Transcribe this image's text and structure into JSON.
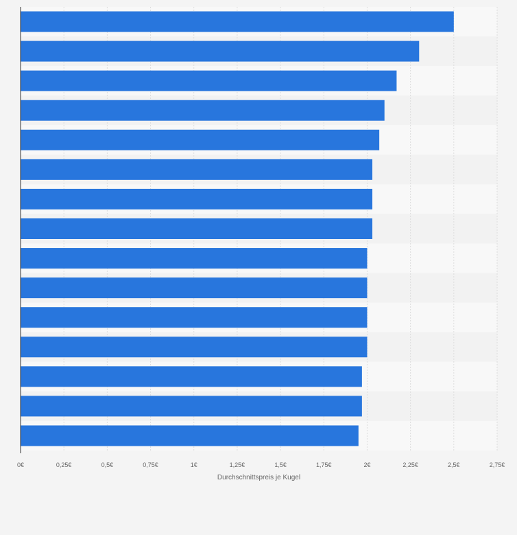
{
  "chart_data": {
    "type": "bar",
    "orientation": "horizontal",
    "title": "",
    "xlabel": "Durchschnittspreis je Kugel",
    "ylabel": "",
    "categories": [
      "",
      "",
      "",
      "",
      "",
      "",
      "",
      "",
      "",
      "",
      "",
      "",
      "",
      "",
      ""
    ],
    "values": [
      2.5,
      2.3,
      2.17,
      2.1,
      2.07,
      2.03,
      2.03,
      2.03,
      2.0,
      2.0,
      2.0,
      2.0,
      1.97,
      1.97,
      1.95
    ],
    "xlim": [
      0,
      2.75
    ],
    "x_ticks": [
      0,
      0.25,
      0.5,
      0.75,
      1,
      1.25,
      1.5,
      1.75,
      2,
      2.25,
      2.5,
      2.75
    ],
    "x_tick_labels": [
      "0€",
      "0,25€",
      "0,5€",
      "0,75€",
      "1€",
      "1,25€",
      "1,5€",
      "1,75€",
      "2€",
      "2,25€",
      "2,5€",
      "2,75€"
    ],
    "grid": true,
    "bar_color": "#2876dd",
    "band_colors": [
      "#f8f8f8",
      "#f2f2f2"
    ],
    "gridline_color": "#dddddd",
    "axis_color": "#333333"
  }
}
